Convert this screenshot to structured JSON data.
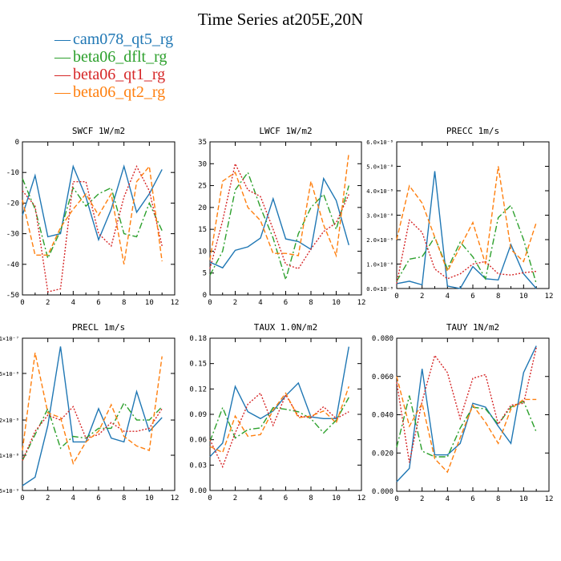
{
  "title": "Time Series at205E,20N",
  "colors": {
    "cam078_qt5_rg": "#1f77b4",
    "beta06_dflt_rg": "#2ca02c",
    "beta06_qt1_rg": "#d62728",
    "beta06_qt2_rg": "#ff7f0e"
  },
  "legend": [
    {
      "name": "cam078_qt5_rg",
      "color": "#1f77b4",
      "dash": "solid"
    },
    {
      "name": "beta06_dflt_rg",
      "color": "#2ca02c",
      "dash": "dashdot"
    },
    {
      "name": "beta06_qt1_rg",
      "color": "#d62728",
      "dash": "dotted"
    },
    {
      "name": "beta06_qt2_rg",
      "color": "#ff7f0e",
      "dash": "dashed"
    }
  ],
  "chart_data": [
    {
      "type": "line",
      "title": "SWCF  1W/m2",
      "x": [
        0,
        1,
        2,
        3,
        4,
        5,
        6,
        7,
        8,
        9,
        10,
        11
      ],
      "xlim": [
        0,
        12
      ],
      "ylim": [
        -50,
        0
      ],
      "xticks": [
        0,
        2,
        4,
        6,
        8,
        10,
        12
      ],
      "xtick_labels": [
        "0",
        "2",
        "4",
        "6",
        "8",
        "10",
        "12"
      ],
      "yticks": [
        -50,
        -40,
        -30,
        -20,
        -10,
        0
      ],
      "ytick_labels": [
        "-50",
        "-40",
        "-30",
        "-20",
        "-10",
        "0"
      ],
      "series": [
        {
          "name": "cam078_qt5_rg",
          "values": [
            -24,
            -11,
            -31,
            -30,
            -8,
            -18,
            -32,
            -22,
            -8,
            -23,
            -17,
            -9
          ]
        },
        {
          "name": "beta06_dflt_rg",
          "values": [
            -12,
            -22,
            -38,
            -29,
            -15,
            -21,
            -17,
            -15,
            -30,
            -31,
            -20,
            -29
          ]
        },
        {
          "name": "beta06_qt1_rg",
          "values": [
            -16,
            -21,
            -49,
            -48,
            -13,
            -13,
            -30,
            -34,
            -18,
            -8,
            -16,
            -34
          ]
        },
        {
          "name": "beta06_qt2_rg",
          "values": [
            -19,
            -37,
            -37,
            -28,
            -22,
            -17,
            -24,
            -17,
            -40,
            -13,
            -8,
            -39
          ]
        }
      ]
    },
    {
      "type": "line",
      "title": "LWCF  1W/m2",
      "x": [
        0,
        1,
        2,
        3,
        4,
        5,
        6,
        7,
        8,
        9,
        10,
        11
      ],
      "xlim": [
        0,
        12
      ],
      "ylim": [
        0,
        35
      ],
      "xticks": [
        0,
        2,
        4,
        6,
        8,
        10,
        12
      ],
      "xtick_labels": [
        "0",
        "2",
        "4",
        "6",
        "8",
        "10",
        "12"
      ],
      "yticks": [
        0,
        5,
        10,
        15,
        20,
        25,
        30,
        35
      ],
      "ytick_labels": [
        "0",
        "5",
        "10",
        "15",
        "20",
        "25",
        "30",
        "35"
      ],
      "series": [
        {
          "name": "cam078_qt5_rg",
          "values": [
            7.5,
            6.2,
            10.2,
            11,
            13,
            22,
            12.8,
            12.2,
            10.4,
            26.6,
            21.6,
            11.4
          ]
        },
        {
          "name": "beta06_dflt_rg",
          "values": [
            4.5,
            10,
            24,
            28,
            20,
            13,
            3.5,
            14,
            20,
            23,
            15,
            25
          ]
        },
        {
          "name": "beta06_qt1_rg",
          "values": [
            6,
            17,
            30,
            24,
            22.5,
            15,
            7,
            6,
            10.5,
            14.5,
            16.5,
            23
          ]
        },
        {
          "name": "beta06_qt2_rg",
          "values": [
            8,
            26,
            28,
            20,
            17,
            9.5,
            9.5,
            9,
            26,
            16,
            9,
            32.5
          ]
        }
      ]
    },
    {
      "type": "line",
      "title": "PRECC  1m/s",
      "x": [
        0,
        1,
        2,
        3,
        4,
        5,
        6,
        7,
        8,
        9,
        10,
        11
      ],
      "xlim": [
        0,
        12
      ],
      "ylim": [
        0,
        6e-08
      ],
      "xticks": [
        0,
        2,
        4,
        6,
        8,
        10,
        12
      ],
      "xtick_labels": [
        "0",
        "2",
        "4",
        "6",
        "8",
        "10",
        "12"
      ],
      "yticks": [
        0,
        1e-08,
        2e-08,
        3e-08,
        4e-08,
        5e-08,
        6e-08
      ],
      "ytick_labels": [
        "0.0×10⁻⁸",
        "1.0×10⁻⁸",
        "2.0×10⁻⁸",
        "3.0×10⁻⁸",
        "4.0×10⁻⁸",
        "5.0×10⁻⁸",
        "6.0×10⁻⁸"
      ],
      "series": [
        {
          "name": "cam078_qt5_rg",
          "values": [
            2e-09,
            3e-09,
            1.5e-09,
            4.8e-08,
            1e-09,
            0,
            9e-09,
            4e-09,
            3.5e-09,
            1.8e-08,
            6e-09,
            0
          ]
        },
        {
          "name": "beta06_dflt_rg",
          "values": [
            3e-09,
            1.2e-08,
            1.3e-08,
            2.1e-08,
            8e-09,
            1.9e-08,
            1.3e-08,
            4e-09,
            2.9e-08,
            3.4e-08,
            2e-08,
            2e-09
          ]
        },
        {
          "name": "beta06_qt1_rg",
          "values": [
            2e-09,
            2.8e-08,
            2.3e-08,
            8e-09,
            4e-09,
            6e-09,
            1e-08,
            1.1e-08,
            6e-09,
            5.5e-09,
            6.5e-09,
            7e-09
          ]
        },
        {
          "name": "beta06_qt2_rg",
          "values": [
            2e-08,
            4.2e-08,
            3.5e-08,
            2.1e-08,
            7e-09,
            1.7e-08,
            2.7e-08,
            1e-08,
            5e-08,
            1.6e-08,
            1.1e-08,
            2.7e-08
          ]
        }
      ]
    },
    {
      "type": "line",
      "title": "PRECL  1m/s",
      "x": [
        0,
        1,
        2,
        3,
        4,
        5,
        6,
        7,
        8,
        9,
        10,
        11
      ],
      "xlim": [
        0,
        12
      ],
      "ylim": [
        0.5,
        10
      ],
      "xticks": [
        0,
        2,
        4,
        6,
        8,
        10,
        12
      ],
      "xtick_labels": [
        "0",
        "2",
        "4",
        "6",
        "8",
        "10",
        "12"
      ],
      "yticks": [
        0.5,
        1,
        2,
        5,
        10
      ],
      "ytick_labels": [
        "5×10⁻⁹",
        "1×10⁻⁸",
        "2×10⁻⁸",
        "5×10⁻⁸",
        "1×10⁻⁷"
      ],
      "series": [
        {
          "name": "cam078_qt5_rg",
          "values": [
            0.55,
            0.65,
            1.8,
            8.5,
            1.3,
            1.3,
            2.5,
            1.4,
            1.3,
            3.5,
            1.6,
            2.1
          ]
        },
        {
          "name": "beta06_dflt_rg",
          "values": [
            0.9,
            1.5,
            2.5,
            1.15,
            1.45,
            1.4,
            1.7,
            1.7,
            2.8,
            2.0,
            2.0,
            2.6
          ]
        },
        {
          "name": "beta06_qt1_rg",
          "values": [
            0.9,
            1.6,
            2.2,
            2.0,
            2.6,
            1.4,
            1.5,
            1.9,
            1.6,
            1.6,
            1.7,
            2.5
          ]
        },
        {
          "name": "beta06_qt2_rg",
          "values": [
            1.1,
            7.5,
            2.3,
            2.1,
            0.85,
            1.3,
            1.6,
            2.7,
            1.45,
            1.2,
            1.1,
            7.0
          ]
        }
      ]
    },
    {
      "type": "line",
      "title": "TAUX  1.0N/m2",
      "x": [
        0,
        1,
        2,
        3,
        4,
        5,
        6,
        7,
        8,
        9,
        10,
        11
      ],
      "xlim": [
        0,
        12
      ],
      "ylim": [
        0,
        0.18
      ],
      "xticks": [
        0,
        2,
        4,
        6,
        8,
        10,
        12
      ],
      "xtick_labels": [
        "0",
        "2",
        "4",
        "6",
        "8",
        "10",
        "12"
      ],
      "yticks": [
        0,
        0.03,
        0.06,
        0.09,
        0.12,
        0.15,
        0.18
      ],
      "ytick_labels": [
        "0.00",
        "0.03",
        "0.06",
        "0.09",
        "0.12",
        "0.15",
        "0.18"
      ],
      "series": [
        {
          "name": "cam078_qt5_rg",
          "values": [
            0.04,
            0.056,
            0.123,
            0.093,
            0.085,
            0.094,
            0.112,
            0.127,
            0.087,
            0.085,
            0.085,
            0.17
          ]
        },
        {
          "name": "beta06_dflt_rg",
          "values": [
            0.058,
            0.098,
            0.062,
            0.072,
            0.074,
            0.098,
            0.096,
            0.093,
            0.085,
            0.068,
            0.083,
            0.11
          ]
        },
        {
          "name": "beta06_qt1_rg",
          "values": [
            0.06,
            0.028,
            0.068,
            0.102,
            0.115,
            0.077,
            0.113,
            0.088,
            0.086,
            0.099,
            0.085,
            0.093
          ]
        },
        {
          "name": "beta06_qt2_rg",
          "values": [
            0.052,
            0.045,
            0.088,
            0.064,
            0.066,
            0.095,
            0.115,
            0.086,
            0.088,
            0.094,
            0.08,
            0.123
          ]
        }
      ]
    },
    {
      "type": "line",
      "title": "TAUY  1N/m2",
      "x": [
        0,
        1,
        2,
        3,
        4,
        5,
        6,
        7,
        8,
        9,
        10,
        11
      ],
      "xlim": [
        0,
        12
      ],
      "ylim": [
        0,
        0.08
      ],
      "xticks": [
        0,
        2,
        4,
        6,
        8,
        10,
        12
      ],
      "xtick_labels": [
        "0",
        "2",
        "4",
        "6",
        "8",
        "10",
        "12"
      ],
      "yticks": [
        0,
        0.02,
        0.04,
        0.06,
        0.08
      ],
      "ytick_labels": [
        "0.000",
        "0.020",
        "0.040",
        "0.060",
        "0.080"
      ],
      "series": [
        {
          "name": "cam078_qt5_rg",
          "values": [
            0.005,
            0.012,
            0.064,
            0.019,
            0.019,
            0.025,
            0.046,
            0.044,
            0.034,
            0.025,
            0.062,
            0.076
          ]
        },
        {
          "name": "beta06_dflt_rg",
          "values": [
            0.023,
            0.05,
            0.021,
            0.018,
            0.018,
            0.033,
            0.044,
            0.043,
            0.035,
            0.044,
            0.047,
            0.031
          ]
        },
        {
          "name": "beta06_qt1_rg",
          "values": [
            0.057,
            0.015,
            0.047,
            0.071,
            0.062,
            0.038,
            0.059,
            0.061,
            0.035,
            0.045,
            0.046,
            0.075
          ]
        },
        {
          "name": "beta06_qt2_rg",
          "values": [
            0.06,
            0.034,
            0.046,
            0.017,
            0.01,
            0.028,
            0.045,
            0.036,
            0.025,
            0.043,
            0.048,
            0.048
          ]
        }
      ]
    }
  ]
}
